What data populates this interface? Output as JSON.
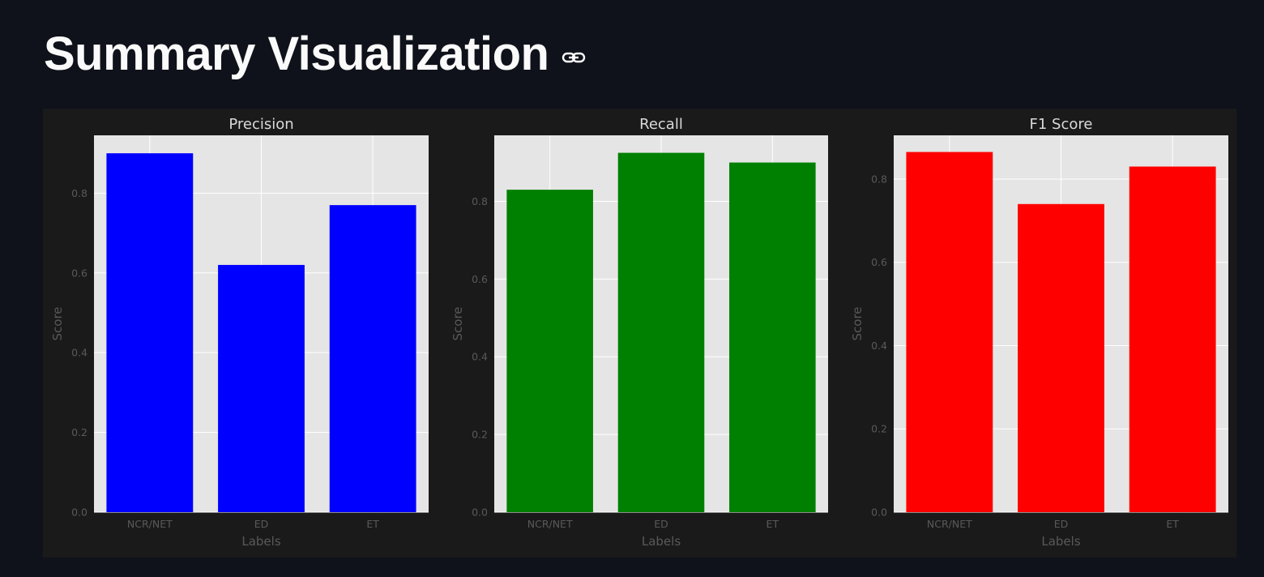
{
  "header": {
    "title": "Summary Visualization",
    "anchor_icon": "link-icon"
  },
  "colors": {
    "background": "#0f121a",
    "figure_bg": "#1a1a1a",
    "axes_bg": "#e5e5e5",
    "grid": "#ffffff",
    "tick_text": "#595959",
    "title_text": "#d9d9d9"
  },
  "chart_data": [
    {
      "type": "bar",
      "title": "Precision",
      "xlabel": "Labels",
      "ylabel": "Score",
      "categories": [
        "NCR/NET",
        "ED",
        "ET"
      ],
      "values": [
        0.9,
        0.62,
        0.77
      ],
      "color": "#0000ff",
      "ylim": [
        0,
        0.945
      ],
      "yticks": [
        0.0,
        0.2,
        0.4,
        0.6,
        0.8
      ],
      "grid": true,
      "style": "ggplot"
    },
    {
      "type": "bar",
      "title": "Recall",
      "xlabel": "Labels",
      "ylabel": "Score",
      "categories": [
        "NCR/NET",
        "ED",
        "ET"
      ],
      "values": [
        0.83,
        0.925,
        0.9
      ],
      "color": "#008000",
      "ylim": [
        0,
        0.97
      ],
      "yticks": [
        0.0,
        0.2,
        0.4,
        0.6,
        0.8
      ],
      "grid": true,
      "style": "ggplot"
    },
    {
      "type": "bar",
      "title": "F1 Score",
      "xlabel": "Labels",
      "ylabel": "Score",
      "categories": [
        "NCR/NET",
        "ED",
        "ET"
      ],
      "values": [
        0.865,
        0.74,
        0.83
      ],
      "color": "#ff0000",
      "ylim": [
        0,
        0.905
      ],
      "yticks": [
        0.0,
        0.2,
        0.4,
        0.6,
        0.8
      ],
      "grid": true,
      "style": "ggplot"
    }
  ]
}
